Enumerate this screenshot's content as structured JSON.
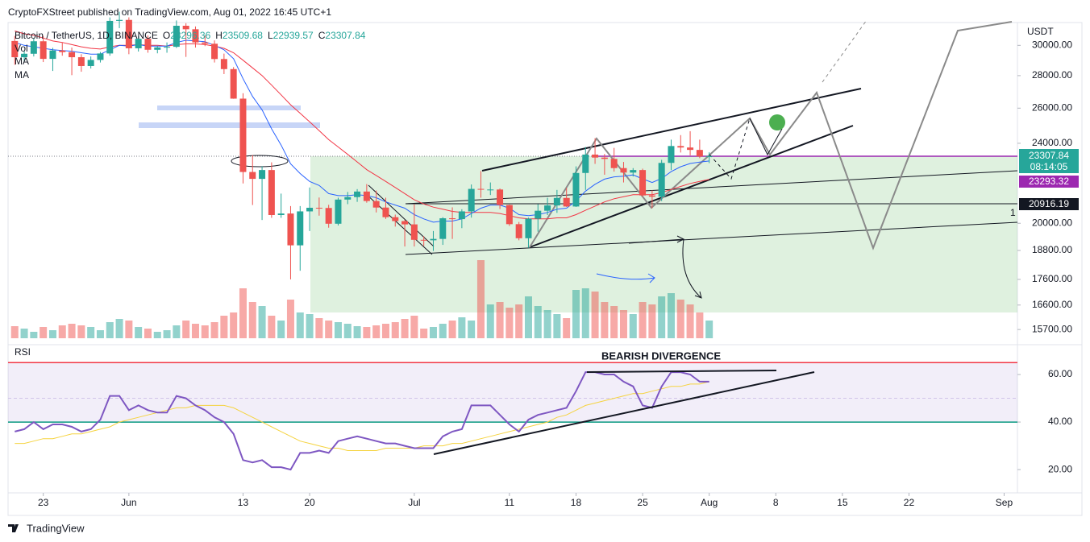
{
  "header": {
    "publisher": "CryptoFXStreet published on TradingView.com, Aug 01, 2022 16:45 UTC+1"
  },
  "footer": {
    "brand": "TradingView"
  },
  "chart_data": {
    "type": "candlestick",
    "title": "Bitcoin / TetherUS, 1D, BINANCE",
    "ohlc_labels": [
      "O",
      "H",
      "L",
      "C"
    ],
    "indicator_labels": [
      "Vol",
      "MA",
      "MA"
    ],
    "currency": "USDT",
    "log_scale": true,
    "x": [
      -3,
      -2,
      -1,
      0,
      1,
      2,
      3,
      4,
      5,
      6,
      7,
      8,
      9,
      10,
      11,
      12,
      13,
      14,
      15,
      16,
      17,
      18,
      19,
      20,
      21,
      22,
      23,
      24,
      25,
      26,
      27,
      28,
      29,
      30,
      31,
      32,
      33,
      34,
      35,
      36,
      37,
      38,
      39,
      40,
      41,
      42,
      43,
      44,
      45,
      46,
      47,
      48,
      49,
      50,
      51,
      52,
      53,
      54,
      55,
      56,
      57,
      58,
      59,
      60,
      61,
      62,
      63,
      64,
      65,
      66,
      67,
      68,
      69,
      70
    ],
    "xlim": [
      -3.7,
      102.4
    ],
    "xticks": [
      {
        "value": 0,
        "label": "23"
      },
      {
        "value": 9,
        "label": "Jun"
      },
      {
        "value": 21,
        "label": "13"
      },
      {
        "value": 28,
        "label": "20"
      },
      {
        "value": 39,
        "label": "Jul"
      },
      {
        "value": 49,
        "label": "11"
      },
      {
        "value": 56,
        "label": "18"
      },
      {
        "value": 63,
        "label": "25"
      },
      {
        "value": 70,
        "label": "Aug"
      },
      {
        "value": 77,
        "label": "8"
      },
      {
        "value": 84,
        "label": "15"
      },
      {
        "value": 91,
        "label": "22"
      },
      {
        "value": 101,
        "label": "Sep"
      }
    ],
    "up_color": "#26a69a",
    "down_color": "#ef5350",
    "candles": [
      [
        30300,
        30650,
        28700,
        29200
      ],
      [
        29200,
        29600,
        28950,
        29430
      ],
      [
        29430,
        30480,
        29250,
        30280
      ],
      [
        30280,
        30650,
        28880,
        29090
      ],
      [
        29090,
        29830,
        28300,
        29650
      ],
      [
        29650,
        30200,
        29300,
        29540
      ],
      [
        29540,
        29850,
        28030,
        29200
      ],
      [
        29200,
        29400,
        28250,
        28620
      ],
      [
        28620,
        29250,
        28460,
        29020
      ],
      [
        29020,
        29550,
        28850,
        29450
      ],
      [
        29450,
        31970,
        29300,
        31720
      ],
      [
        31720,
        32390,
        31200,
        31790
      ],
      [
        31790,
        31980,
        29400,
        29800
      ],
      [
        29800,
        30650,
        29580,
        30450
      ],
      [
        30450,
        30680,
        29500,
        29700
      ],
      [
        29700,
        29950,
        29460,
        29860
      ],
      [
        29860,
        30200,
        29500,
        29900
      ],
      [
        29900,
        31750,
        29820,
        31370
      ],
      [
        31370,
        31550,
        29220,
        31120
      ],
      [
        31120,
        31320,
        29850,
        30200
      ],
      [
        30200,
        30700,
        29950,
        30110
      ],
      [
        30110,
        30340,
        28850,
        29080
      ],
      [
        29080,
        29440,
        28100,
        28420
      ],
      [
        28420,
        28550,
        26560,
        26570
      ],
      [
        26570,
        26900,
        21900,
        22480
      ],
      [
        22480,
        23360,
        20850,
        22130
      ],
      [
        22130,
        22780,
        20150,
        22580
      ],
      [
        22580,
        22980,
        20250,
        20380
      ],
      [
        20380,
        21400,
        20250,
        20450
      ],
      [
        20450,
        20800,
        17600,
        19020
      ],
      [
        19020,
        20800,
        17950,
        20550
      ],
      [
        20550,
        21700,
        19650,
        20720
      ],
      [
        20720,
        21210,
        20350,
        20710
      ],
      [
        20710,
        20860,
        19800,
        19980
      ],
      [
        19980,
        21200,
        19900,
        21110
      ],
      [
        21110,
        21480,
        20890,
        21230
      ],
      [
        21230,
        21620,
        21000,
        21500
      ],
      [
        21500,
        21870,
        20960,
        21040
      ],
      [
        21040,
        21550,
        20500,
        20730
      ],
      [
        20730,
        21200,
        20200,
        20280
      ],
      [
        20280,
        20400,
        19850,
        20100
      ],
      [
        20100,
        20150,
        18970,
        19950
      ],
      [
        19950,
        20880,
        18970,
        19260
      ],
      [
        19260,
        19420,
        18990,
        19240
      ],
      [
        19240,
        19650,
        18780,
        19300
      ],
      [
        19300,
        20280,
        19040,
        20230
      ],
      [
        20230,
        20740,
        19300,
        20190
      ],
      [
        20190,
        20650,
        19780,
        20550
      ],
      [
        20550,
        21850,
        20260,
        21630
      ],
      [
        21630,
        22530,
        21200,
        21590
      ],
      [
        21590,
        21950,
        21330,
        21600
      ],
      [
        21600,
        21650,
        20660,
        20850
      ],
      [
        20850,
        20870,
        19880,
        19960
      ],
      [
        19960,
        20060,
        19240,
        19330
      ],
      [
        19330,
        20260,
        18910,
        20210
      ],
      [
        20210,
        20890,
        19620,
        20580
      ],
      [
        20580,
        21200,
        20380,
        20830
      ],
      [
        20830,
        21580,
        20480,
        21190
      ],
      [
        21190,
        21680,
        20760,
        20780
      ],
      [
        20780,
        22770,
        20760,
        22430
      ],
      [
        22430,
        23800,
        21580,
        23390
      ],
      [
        23390,
        24280,
        22900,
        23230
      ],
      [
        23230,
        23420,
        22340,
        23160
      ],
      [
        23160,
        23750,
        22500,
        22680
      ],
      [
        22680,
        23000,
        21950,
        22450
      ],
      [
        22450,
        22680,
        22250,
        22580
      ],
      [
        22580,
        22650,
        21250,
        21310
      ],
      [
        21310,
        21560,
        20700,
        21250
      ],
      [
        21250,
        23110,
        21040,
        22950
      ],
      [
        22950,
        24200,
        22580,
        23850
      ],
      [
        23850,
        24450,
        23500,
        23770
      ],
      [
        23770,
        24670,
        23350,
        23640
      ],
      [
        23640,
        24200,
        23200,
        23290
      ],
      [
        23296.36,
        23509.68,
        22939.57,
        23307.84
      ]
    ],
    "volume": [
      15,
      12,
      8,
      14,
      10,
      16,
      18,
      16,
      14,
      10,
      20,
      24,
      22,
      14,
      12,
      8,
      10,
      16,
      22,
      18,
      16,
      20,
      28,
      32,
      62,
      45,
      40,
      28,
      22,
      48,
      32,
      30,
      25,
      22,
      20,
      18,
      15,
      14,
      16,
      18,
      20,
      24,
      28,
      12,
      14,
      18,
      22,
      26,
      22,
      97,
      42,
      45,
      38,
      42,
      52,
      40,
      35,
      30,
      25,
      60,
      62,
      58,
      45,
      40,
      35,
      30,
      45,
      42,
      52,
      56,
      48,
      42,
      32,
      22
    ],
    "ma_fast": {
      "color": "#2962ff",
      "values": [
        30200,
        30000,
        29900,
        29800,
        29700,
        29650,
        29600,
        29500,
        29400,
        29400,
        29700,
        30000,
        29950,
        30050,
        29950,
        29950,
        29950,
        30200,
        30350,
        30300,
        30250,
        30000,
        29700,
        29100,
        27800,
        26700,
        25900,
        24800,
        23900,
        22900,
        22400,
        22000,
        21800,
        21400,
        21300,
        21300,
        21350,
        21300,
        21200,
        21000,
        20850,
        20700,
        20400,
        20200,
        20050,
        20100,
        20100,
        20200,
        20450,
        20700,
        20850,
        20850,
        20700,
        20400,
        20350,
        20400,
        20500,
        20650,
        20700,
        21050,
        21520,
        21860,
        22120,
        22230,
        22270,
        22330,
        22130,
        21950,
        22150,
        22500,
        22750,
        22920,
        22990,
        23050
      ]
    },
    "ma_slow": {
      "color": "#f23645",
      "values": [
        31000,
        30800,
        30700,
        30500,
        30300,
        30200,
        30050,
        29900,
        29800,
        29750,
        29900,
        30000,
        30000,
        30050,
        30000,
        30000,
        29950,
        30050,
        30100,
        30100,
        30050,
        29950,
        29800,
        29500,
        29000,
        28500,
        28000,
        27400,
        26800,
        26200,
        25700,
        25200,
        24700,
        24200,
        23800,
        23400,
        23000,
        22600,
        22300,
        22000,
        21700,
        21400,
        21100,
        20900,
        20750,
        20650,
        20550,
        20500,
        20500,
        20500,
        20500,
        20450,
        20350,
        20250,
        20200,
        20200,
        20200,
        20250,
        20250,
        20400,
        20600,
        20800,
        21000,
        21150,
        21250,
        21350,
        21350,
        21350,
        21450,
        21600,
        21750,
        21900,
        22000,
        22100
      ]
    },
    "ylim": [
      15250,
      31600
    ],
    "yticks": [
      {
        "value": 30000,
        "label": "30000.00"
      },
      {
        "value": 28000,
        "label": "28000.00"
      },
      {
        "value": 26000,
        "label": "26000.00"
      },
      {
        "value": 24000,
        "label": "24000.00"
      },
      {
        "value": 20000,
        "label": "20000.00"
      },
      {
        "value": 18800,
        "label": "18800.00"
      },
      {
        "value": 17600,
        "label": "17600.00"
      },
      {
        "value": 16600,
        "label": "16600.00"
      },
      {
        "value": 15700,
        "label": "15700.00"
      }
    ],
    "price_labels": {
      "countdown": "08:14:05",
      "levels": [
        23293.32,
        20916.19
      ]
    },
    "annotations": {
      "pattern_count": "1",
      "divergence": "BEARISH DIVERGENCE"
    },
    "rsi": {
      "label": "RSI",
      "color": "#7e57c2",
      "values": [
        36,
        37,
        40,
        37,
        39,
        39,
        38,
        36,
        37,
        41,
        51,
        51,
        45,
        47,
        45,
        44,
        44,
        51,
        50,
        47,
        45,
        42,
        40,
        35,
        24,
        23,
        24,
        21,
        21,
        20,
        27,
        27,
        28,
        27,
        32,
        33,
        34,
        33,
        32,
        31,
        31,
        30,
        29,
        29,
        29,
        34,
        36,
        37,
        47,
        47,
        47,
        43,
        39,
        36,
        41,
        43,
        44,
        45,
        46,
        53,
        61,
        61,
        60,
        60,
        57,
        55,
        47,
        46,
        55,
        61,
        61,
        60,
        57,
        57
      ],
      "ma": {
        "color": "#f5d33f",
        "values": [
          31,
          31,
          32,
          33,
          33,
          34,
          35,
          35,
          36,
          37,
          38,
          40,
          41,
          42,
          43,
          44,
          45,
          46,
          46,
          47,
          47,
          47,
          47,
          46,
          44,
          42,
          40,
          38,
          36,
          34,
          32,
          31,
          30,
          29,
          29,
          28,
          28,
          28,
          28,
          29,
          29,
          29,
          29,
          30,
          30,
          30,
          31,
          31,
          32,
          33,
          34,
          35,
          36,
          37,
          38,
          39,
          40,
          42,
          43,
          45,
          47,
          48,
          49,
          50,
          51,
          52,
          52,
          53,
          54,
          55,
          55,
          56,
          56,
          57
        ]
      },
      "ylim": [
        10.2,
        71.2
      ],
      "yticks": [
        {
          "value": 60,
          "label": "60.00"
        },
        {
          "value": 40,
          "label": "40.00"
        },
        {
          "value": 20,
          "label": "20.00"
        }
      ],
      "upper_band": 65,
      "middle_band": 50,
      "lower_band": 40
    }
  }
}
